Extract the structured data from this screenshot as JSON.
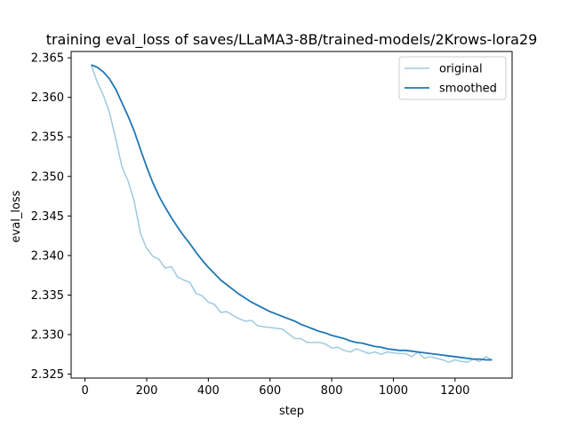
{
  "chart_data": {
    "type": "line",
    "title": "training eval_loss of saves/LLaMA3-8B/trained-models/2Krows-lora29",
    "xlabel": "step",
    "ylabel": "eval_loss",
    "xlim": [
      -45,
      1385
    ],
    "ylim": [
      2.3245,
      2.3658
    ],
    "xticks": [
      0,
      200,
      400,
      600,
      800,
      1000,
      1200
    ],
    "yticks": [
      2.325,
      2.33,
      2.335,
      2.34,
      2.345,
      2.35,
      2.355,
      2.36,
      2.365
    ],
    "ytick_labels": [
      "2.325",
      "2.330",
      "2.335",
      "2.340",
      "2.345",
      "2.350",
      "2.355",
      "2.360",
      "2.365"
    ],
    "legend": {
      "location": "top-right",
      "entries": [
        "original",
        "smoothed"
      ]
    },
    "grid": false,
    "series": [
      {
        "name": "original",
        "color": "#9ecae1",
        "x": [
          20,
          40,
          60,
          80,
          100,
          120,
          140,
          160,
          180,
          200,
          220,
          240,
          260,
          280,
          300,
          320,
          340,
          360,
          380,
          400,
          420,
          440,
          460,
          480,
          500,
          520,
          540,
          560,
          580,
          600,
          620,
          640,
          660,
          680,
          700,
          720,
          740,
          760,
          780,
          800,
          820,
          840,
          860,
          880,
          900,
          920,
          940,
          960,
          980,
          1000,
          1020,
          1040,
          1060,
          1080,
          1100,
          1120,
          1140,
          1160,
          1180,
          1200,
          1220,
          1240,
          1260,
          1280,
          1300,
          1320
        ],
        "values": [
          2.3641,
          2.3619,
          2.3602,
          2.358,
          2.3547,
          2.3512,
          2.3494,
          2.3468,
          2.3428,
          2.3409,
          2.3399,
          2.3395,
          2.3384,
          2.3386,
          2.3373,
          2.3369,
          2.3366,
          2.3352,
          2.3349,
          2.3341,
          2.3338,
          2.3328,
          2.3329,
          2.3324,
          2.332,
          2.3317,
          2.3318,
          2.3311,
          2.331,
          2.3309,
          2.3308,
          2.3307,
          2.3301,
          2.3295,
          2.3295,
          2.329,
          2.329,
          2.329,
          2.3288,
          2.3283,
          2.3284,
          2.328,
          2.3278,
          2.3282,
          2.3279,
          2.3276,
          2.3278,
          2.3275,
          2.3278,
          2.3277,
          2.3276,
          2.3276,
          2.3272,
          2.3278,
          2.327,
          2.3272,
          2.327,
          2.3268,
          2.3265,
          2.3268,
          2.3266,
          2.3265,
          2.3269,
          2.3266,
          2.3272,
          2.3268
        ]
      },
      {
        "name": "smoothed",
        "color": "#1f77b4",
        "x": [
          20,
          40,
          60,
          80,
          100,
          120,
          140,
          160,
          180,
          200,
          220,
          240,
          260,
          280,
          300,
          320,
          340,
          360,
          380,
          400,
          420,
          440,
          460,
          480,
          500,
          520,
          540,
          560,
          580,
          600,
          620,
          640,
          660,
          680,
          700,
          720,
          740,
          760,
          780,
          800,
          820,
          840,
          860,
          880,
          900,
          920,
          940,
          960,
          980,
          1000,
          1020,
          1040,
          1060,
          1080,
          1100,
          1120,
          1140,
          1160,
          1180,
          1200,
          1220,
          1240,
          1260,
          1280,
          1300,
          1320
        ],
        "values": [
          2.3641,
          2.3638,
          2.3632,
          2.3623,
          2.361,
          2.3593,
          2.3576,
          2.3557,
          2.3534,
          2.3512,
          2.3492,
          2.3475,
          2.3461,
          2.3448,
          2.3436,
          2.3425,
          2.3415,
          2.3404,
          2.3394,
          2.3385,
          2.3377,
          2.3369,
          2.3363,
          2.3357,
          2.3351,
          2.3346,
          2.3341,
          2.3337,
          2.3333,
          2.3329,
          2.3326,
          2.3323,
          2.332,
          2.3317,
          2.3313,
          2.331,
          2.3307,
          2.3304,
          2.3302,
          2.3299,
          2.3297,
          2.3295,
          2.3292,
          2.329,
          2.3289,
          2.3287,
          2.3285,
          2.3284,
          2.3282,
          2.3281,
          2.328,
          2.328,
          2.3279,
          2.3278,
          2.3277,
          2.3276,
          2.3275,
          2.3274,
          2.3273,
          2.3272,
          2.3271,
          2.327,
          2.3269,
          2.3269,
          2.3268,
          2.3268
        ]
      }
    ]
  }
}
